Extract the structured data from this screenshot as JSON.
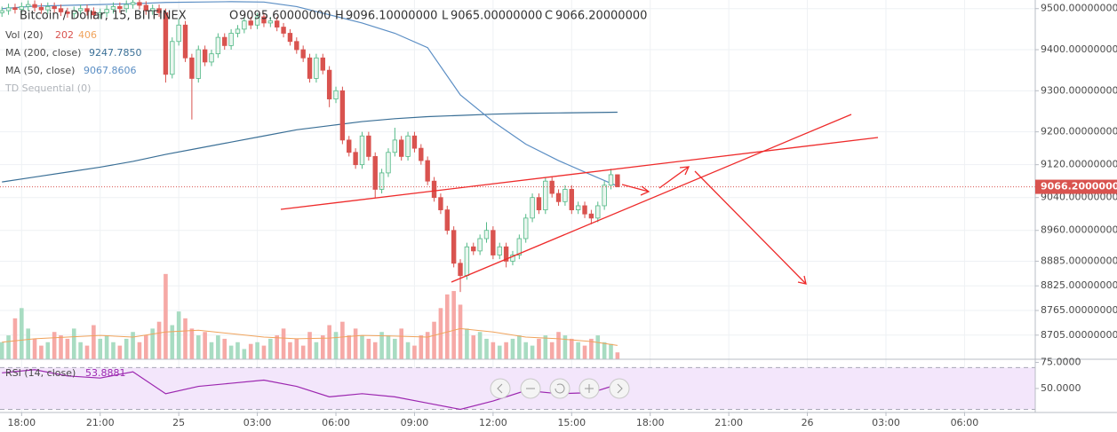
{
  "chart_data": {
    "type": "candlestick",
    "title": "Bitcoin / Dollar, 15, BITFINEX",
    "xlim": [
      -0.3,
      157.8
    ],
    "xticks": [
      {
        "value": 3,
        "label": "18:00"
      },
      {
        "value": 15,
        "label": "21:00"
      },
      {
        "value": 27,
        "label": "25"
      },
      {
        "value": 39,
        "label": "03:00"
      },
      {
        "value": 51,
        "label": "06:00"
      },
      {
        "value": 63,
        "label": "09:00"
      },
      {
        "value": 75,
        "label": "12:00"
      },
      {
        "value": 87,
        "label": "15:00"
      },
      {
        "value": 99,
        "label": "18:00"
      },
      {
        "value": 111,
        "label": "21:00"
      },
      {
        "value": 123,
        "label": "26"
      },
      {
        "value": 135,
        "label": "03:00"
      },
      {
        "value": 147,
        "label": "06:00"
      }
    ],
    "ylim": [
      8670,
      9521
    ],
    "yticks": [
      {
        "value": 9500,
        "label": "9500.00000000"
      },
      {
        "value": 9400,
        "label": "9400.00000000"
      },
      {
        "value": 9300,
        "label": "9300.00000000"
      },
      {
        "value": 9200,
        "label": "9200.00000000"
      },
      {
        "value": 9120,
        "label": "9120.00000000"
      },
      {
        "value": 9040,
        "label": "9040.00000000"
      },
      {
        "value": 8960,
        "label": "8960.00000000"
      },
      {
        "value": 8885,
        "label": "8885.00000000"
      },
      {
        "value": 8825,
        "label": "8825.00000000"
      },
      {
        "value": 8765,
        "label": "8765.00000000"
      },
      {
        "value": 8705,
        "label": "8705.00000000"
      }
    ],
    "grid": true,
    "ohlc_prefixes": [
      "O",
      "H",
      "L",
      "C"
    ],
    "candles": {
      "up_color": "#53b987",
      "down_color": "#d9534f",
      "open": [
        9490,
        9495,
        9502,
        9498,
        9505,
        9510,
        9503,
        9497,
        9505,
        9500,
        9492,
        9488,
        9495,
        9500,
        9493,
        9485,
        9490,
        9498,
        9505,
        9500,
        9510,
        9515,
        9508,
        9495,
        9500,
        9490,
        9340,
        9420,
        9460,
        9380,
        9330,
        9400,
        9370,
        9390,
        9430,
        9410,
        9440,
        9450,
        9470,
        9460,
        9480,
        9465,
        9470,
        9455,
        9440,
        9420,
        9400,
        9380,
        9330,
        9380,
        9350,
        9280,
        9300,
        9180,
        9150,
        9120,
        9190,
        9140,
        9060,
        9100,
        9150,
        9180,
        9140,
        9190,
        9160,
        9130,
        9080,
        9040,
        9010,
        8960,
        8880,
        8850,
        8920,
        8910,
        8940,
        8960,
        8900,
        8920,
        8885,
        8900,
        8940,
        8990,
        9040,
        9010,
        9080,
        9050,
        9030,
        9060,
        9010,
        9020,
        9000,
        8990,
        9020,
        9070,
        9095.6
      ],
      "high": [
        9505,
        9512,
        9512,
        9515,
        9520,
        9520,
        9513,
        9515,
        9515,
        9510,
        9502,
        9505,
        9510,
        9510,
        9503,
        9500,
        9508,
        9515,
        9515,
        9520,
        9525,
        9525,
        9518,
        9510,
        9510,
        9500,
        9430,
        9475,
        9470,
        9390,
        9410,
        9410,
        9400,
        9440,
        9440,
        9450,
        9460,
        9480,
        9480,
        9490,
        9490,
        9480,
        9480,
        9465,
        9450,
        9430,
        9410,
        9390,
        9390,
        9390,
        9360,
        9310,
        9310,
        9190,
        9160,
        9200,
        9200,
        9150,
        9110,
        9160,
        9210,
        9190,
        9200,
        9200,
        9170,
        9140,
        9090,
        9050,
        9020,
        8970,
        8890,
        8930,
        8930,
        8950,
        8980,
        8970,
        8930,
        8930,
        8910,
        8950,
        9000,
        9050,
        9050,
        9090,
        9090,
        9060,
        9070,
        9070,
        9030,
        9030,
        9010,
        9030,
        9080,
        9110,
        9096.1
      ],
      "low": [
        9480,
        9485,
        9488,
        9488,
        9495,
        9493,
        9487,
        9487,
        9490,
        9482,
        9478,
        9478,
        9485,
        9483,
        9475,
        9475,
        9480,
        9488,
        9490,
        9490,
        9500,
        9498,
        9485,
        9485,
        9480,
        9320,
        9330,
        9410,
        9370,
        9230,
        9320,
        9360,
        9360,
        9380,
        9400,
        9400,
        9430,
        9440,
        9450,
        9450,
        9455,
        9455,
        9445,
        9430,
        9410,
        9390,
        9370,
        9320,
        9320,
        9340,
        9260,
        9270,
        9170,
        9140,
        9110,
        9110,
        9130,
        9040,
        9050,
        9090,
        9140,
        9130,
        9130,
        9150,
        9120,
        9070,
        9030,
        9000,
        8950,
        8870,
        8810,
        8840,
        8900,
        8900,
        8930,
        8890,
        8890,
        8870,
        8875,
        8890,
        8930,
        8980,
        9000,
        9000,
        9040,
        9020,
        9020,
        9000,
        9000,
        8990,
        8975,
        8980,
        9010,
        9060,
        9065
      ],
      "close": [
        9495,
        9502,
        9498,
        9505,
        9510,
        9503,
        9497,
        9505,
        9500,
        9492,
        9488,
        9495,
        9500,
        9493,
        9485,
        9490,
        9498,
        9505,
        9500,
        9510,
        9515,
        9508,
        9495,
        9500,
        9490,
        9340,
        9420,
        9460,
        9380,
        9330,
        9400,
        9370,
        9390,
        9430,
        9410,
        9440,
        9450,
        9470,
        9460,
        9480,
        9465,
        9470,
        9455,
        9440,
        9420,
        9400,
        9380,
        9330,
        9380,
        9350,
        9280,
        9300,
        9180,
        9150,
        9120,
        9190,
        9140,
        9060,
        9100,
        9150,
        9180,
        9140,
        9190,
        9160,
        9130,
        9080,
        9040,
        9010,
        8960,
        8880,
        8850,
        8920,
        8910,
        8940,
        8960,
        8900,
        8920,
        8885,
        8900,
        8940,
        8990,
        9040,
        9010,
        9080,
        9050,
        9030,
        9060,
        9010,
        9020,
        9000,
        8990,
        9020,
        9070,
        9095.6,
        9066.2
      ],
      "value_labels": {
        "open": {
          "94": "9095.60000000"
        },
        "high": {
          "94": "9096.10000000"
        },
        "low": {
          "94": "9065.00000000"
        },
        "close": {
          "94": "9066.20000000"
        }
      }
    },
    "volume": {
      "name": "Vol (20)",
      "ylim": [
        0,
        2600
      ],
      "up_color": "#a8dcc2",
      "down_color": "#f6a9a6",
      "values": [
        500,
        700,
        1200,
        1500,
        900,
        600,
        400,
        500,
        800,
        700,
        600,
        900,
        500,
        400,
        1000,
        600,
        700,
        500,
        400,
        600,
        800,
        500,
        700,
        900,
        1100,
        2500,
        1000,
        1400,
        1200,
        900,
        700,
        800,
        500,
        700,
        600,
        400,
        500,
        300,
        450,
        500,
        400,
        600,
        700,
        900,
        500,
        600,
        400,
        800,
        500,
        700,
        1000,
        800,
        1100,
        700,
        900,
        700,
        600,
        500,
        800,
        700,
        600,
        900,
        500,
        400,
        700,
        800,
        1100,
        1500,
        1900,
        2000,
        1600,
        900,
        700,
        800,
        600,
        500,
        400,
        500,
        600,
        700,
        500,
        400,
        600,
        700,
        500,
        800,
        700,
        600,
        500,
        400,
        600,
        700,
        500,
        450,
        202
      ]
    },
    "vol_ma": {
      "color": "#f0a35c",
      "x": [
        0,
        5,
        10,
        15,
        20,
        25,
        30,
        35,
        40,
        45,
        50,
        55,
        60,
        65,
        70,
        75,
        80,
        85,
        90,
        94
      ],
      "values": [
        500,
        600,
        650,
        700,
        650,
        800,
        850,
        750,
        650,
        600,
        620,
        700,
        680,
        650,
        900,
        800,
        650,
        600,
        520,
        406
      ]
    },
    "ma200": {
      "name": "MA (200, close)",
      "color": "#3a6f96",
      "x": [
        0,
        5,
        10,
        15,
        20,
        25,
        30,
        35,
        40,
        45,
        50,
        55,
        60,
        65,
        70,
        75,
        80,
        85,
        90,
        94
      ],
      "values": [
        9078,
        9090,
        9102,
        9114,
        9128,
        9145,
        9160,
        9175,
        9190,
        9205,
        9215,
        9225,
        9232,
        9237,
        9240,
        9243,
        9245,
        9246,
        9247,
        9247.785
      ],
      "value_labels": {
        "19": "9247.7850"
      }
    },
    "ma50": {
      "name": "MA (50, close)",
      "color": "#5b8ec4",
      "x": [
        0,
        5,
        10,
        15,
        20,
        25,
        30,
        35,
        40,
        45,
        50,
        55,
        60,
        65,
        70,
        75,
        80,
        85,
        90,
        94
      ],
      "values": [
        9500,
        9506,
        9508,
        9510,
        9512,
        9515,
        9516,
        9517,
        9516,
        9505,
        9485,
        9465,
        9440,
        9405,
        9290,
        9225,
        9170,
        9130,
        9095,
        9067.8606
      ]
    },
    "td_sequential": "TD Sequential (0)",
    "rsi": {
      "name": "RSI (14, close)",
      "color": "#9c27b0",
      "ylim": [
        27,
        78
      ],
      "band": [
        30,
        70
      ],
      "yticks": [
        {
          "value": 75,
          "label": "75.0000"
        },
        {
          "value": 50,
          "label": "50.0000"
        }
      ],
      "x": [
        0,
        5,
        10,
        15,
        20,
        25,
        30,
        35,
        40,
        45,
        50,
        55,
        60,
        65,
        70,
        75,
        80,
        85,
        90,
        94
      ],
      "values": [
        65,
        68,
        62,
        60,
        66,
        45,
        52,
        55,
        58,
        52,
        42,
        45,
        42,
        36,
        30,
        38,
        48,
        45,
        46,
        53.8881
      ]
    }
  }
}
